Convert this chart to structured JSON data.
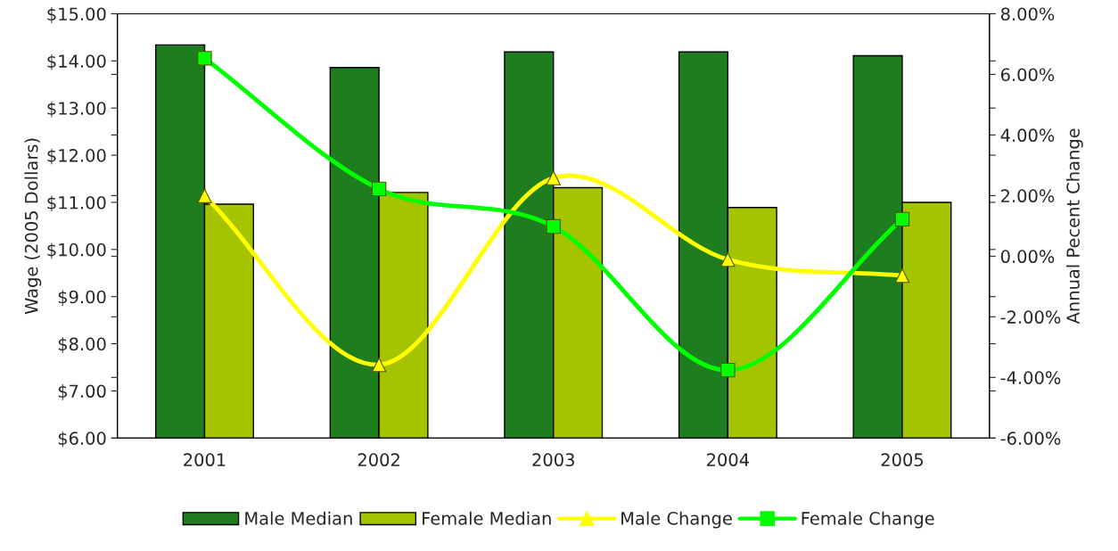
{
  "chart_data": {
    "type": "bar",
    "ylabel": "Wage (2005 Dollars)",
    "y2label": "Annual Pecent Change",
    "categories": [
      "2001",
      "2002",
      "2003",
      "2004",
      "2005"
    ],
    "series": [
      {
        "name": "Male Median",
        "color": "#1e7d1e",
        "values": [
          14.34,
          13.86,
          14.19,
          14.19,
          14.11
        ]
      },
      {
        "name": "Female Median",
        "color": "#a4c400",
        "values": [
          10.96,
          11.21,
          11.31,
          10.89,
          11.0
        ]
      },
      {
        "name": "Male Change",
        "type": "line",
        "axis": "y2",
        "color": "#ffff00",
        "marker": "triangle",
        "values": [
          1.99,
          -3.58,
          2.58,
          -0.11,
          -0.64
        ]
      },
      {
        "name": "Female Change",
        "type": "line",
        "axis": "y2",
        "color": "#00ff00",
        "marker": "square",
        "values": [
          6.53,
          2.22,
          0.98,
          -3.76,
          1.22
        ]
      }
    ],
    "ylim": [
      6,
      15
    ],
    "yticks": [
      {
        "value": 6,
        "label": "$6.00"
      },
      {
        "value": 7,
        "label": "$7.00"
      },
      {
        "value": 8,
        "label": "$8.00"
      },
      {
        "value": 9,
        "label": "$9.00"
      },
      {
        "value": 10,
        "label": "$10.00"
      },
      {
        "value": 11,
        "label": "$11.00"
      },
      {
        "value": 12,
        "label": "$12.00"
      },
      {
        "value": 13,
        "label": "$13.00"
      },
      {
        "value": 14,
        "label": "$14.00"
      },
      {
        "value": 15,
        "label": "$15.00"
      }
    ],
    "y2lim": [
      -6,
      8
    ],
    "y2ticks": [
      {
        "value": -6,
        "label": "-6.00%"
      },
      {
        "value": -4,
        "label": "-4.00%"
      },
      {
        "value": -2,
        "label": "-2.00%"
      },
      {
        "value": 0,
        "label": "0.00%"
      },
      {
        "value": 2,
        "label": "2.00%"
      },
      {
        "value": 4,
        "label": "4.00%"
      },
      {
        "value": 6,
        "label": "6.00%"
      },
      {
        "value": 8,
        "label": "8.00%"
      }
    ],
    "grid": false,
    "legend": "bottom",
    "line_style": "solid"
  }
}
